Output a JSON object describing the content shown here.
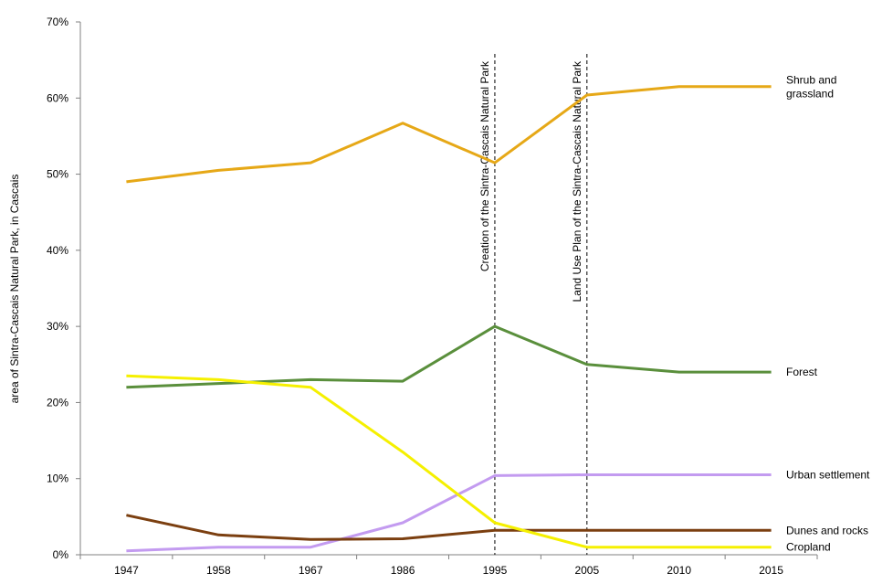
{
  "chart_data": {
    "type": "line",
    "title": "",
    "xlabel": "",
    "ylabel": "area of Sintra-Cascais Natural Park, in Cascais",
    "x": [
      "1947",
      "1958",
      "1967",
      "1986",
      "1995",
      "2005",
      "2010",
      "2015"
    ],
    "ylim": [
      0,
      70
    ],
    "yticks": [
      "0%",
      "10%",
      "20%",
      "30%",
      "40%",
      "50%",
      "60%",
      "70%"
    ],
    "grid": false,
    "series": [
      {
        "name": "Shrub and grassland",
        "label_lines": [
          "Shrub and",
          "grassland"
        ],
        "color": "#E6A817",
        "values": [
          49,
          50.5,
          51.5,
          56.7,
          51.5,
          60.4,
          61.5,
          61.5
        ]
      },
      {
        "name": "Forest",
        "label_lines": [
          "Forest"
        ],
        "color": "#5A8F3C",
        "values": [
          22,
          22.5,
          23,
          22.8,
          30,
          25,
          24,
          24
        ]
      },
      {
        "name": "Urban settlement",
        "label_lines": [
          "Urban settlement"
        ],
        "color": "#C39BF0",
        "values": [
          0.5,
          1,
          1,
          4.2,
          10.4,
          10.5,
          10.5,
          10.5
        ]
      },
      {
        "name": "Dunes and rocks",
        "label_lines": [
          "Dunes and rocks"
        ],
        "color": "#7B3F10",
        "values": [
          5.2,
          2.6,
          2,
          2.1,
          3.2,
          3.2,
          3.2,
          3.2
        ]
      },
      {
        "name": "Cropland",
        "label_lines": [
          "Cropland"
        ],
        "color": "#F5F000",
        "values": [
          23.5,
          23,
          22,
          13.5,
          4.2,
          1,
          1,
          1
        ]
      }
    ],
    "annotations": [
      {
        "at": "1995",
        "text": "Creation of the Sintra-Cascais Natural Park"
      },
      {
        "at": "2005",
        "text": "Land Use Plan of the Sintra-Cascais Natural Park"
      }
    ]
  }
}
